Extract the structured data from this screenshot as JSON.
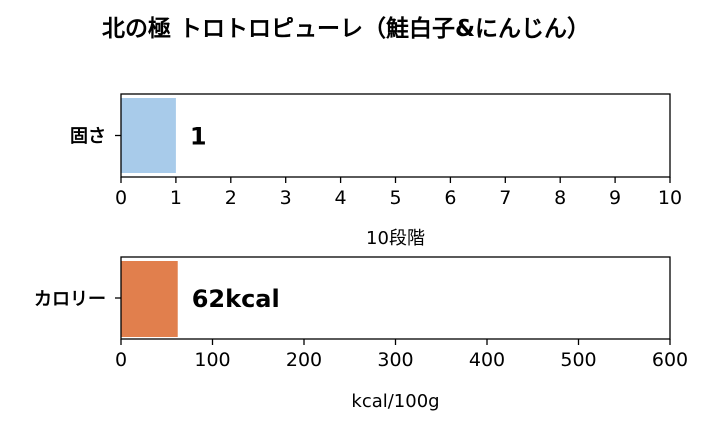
{
  "chart_data": [
    {
      "type": "bar",
      "orientation": "horizontal",
      "title": "北の極 トロトロピューレ（鮭白子&にんじん）",
      "categories": [
        "固さ"
      ],
      "values": [
        1
      ],
      "data_labels": [
        "1"
      ],
      "xlabel": "10段階",
      "xlim": [
        0,
        10
      ],
      "xticks": [
        "0",
        "1",
        "2",
        "3",
        "4",
        "5",
        "6",
        "7",
        "8",
        "9",
        "10"
      ],
      "bar_color": "#a8cbea",
      "grid": false
    },
    {
      "type": "bar",
      "orientation": "horizontal",
      "categories": [
        "カロリー"
      ],
      "values": [
        62
      ],
      "data_labels": [
        "62kcal"
      ],
      "xlabel": "kcal/100g",
      "xlim": [
        0,
        600
      ],
      "xticks": [
        "0",
        "100",
        "200",
        "300",
        "400",
        "500",
        "600"
      ],
      "bar_color": "#e17f4d",
      "grid": false
    }
  ]
}
